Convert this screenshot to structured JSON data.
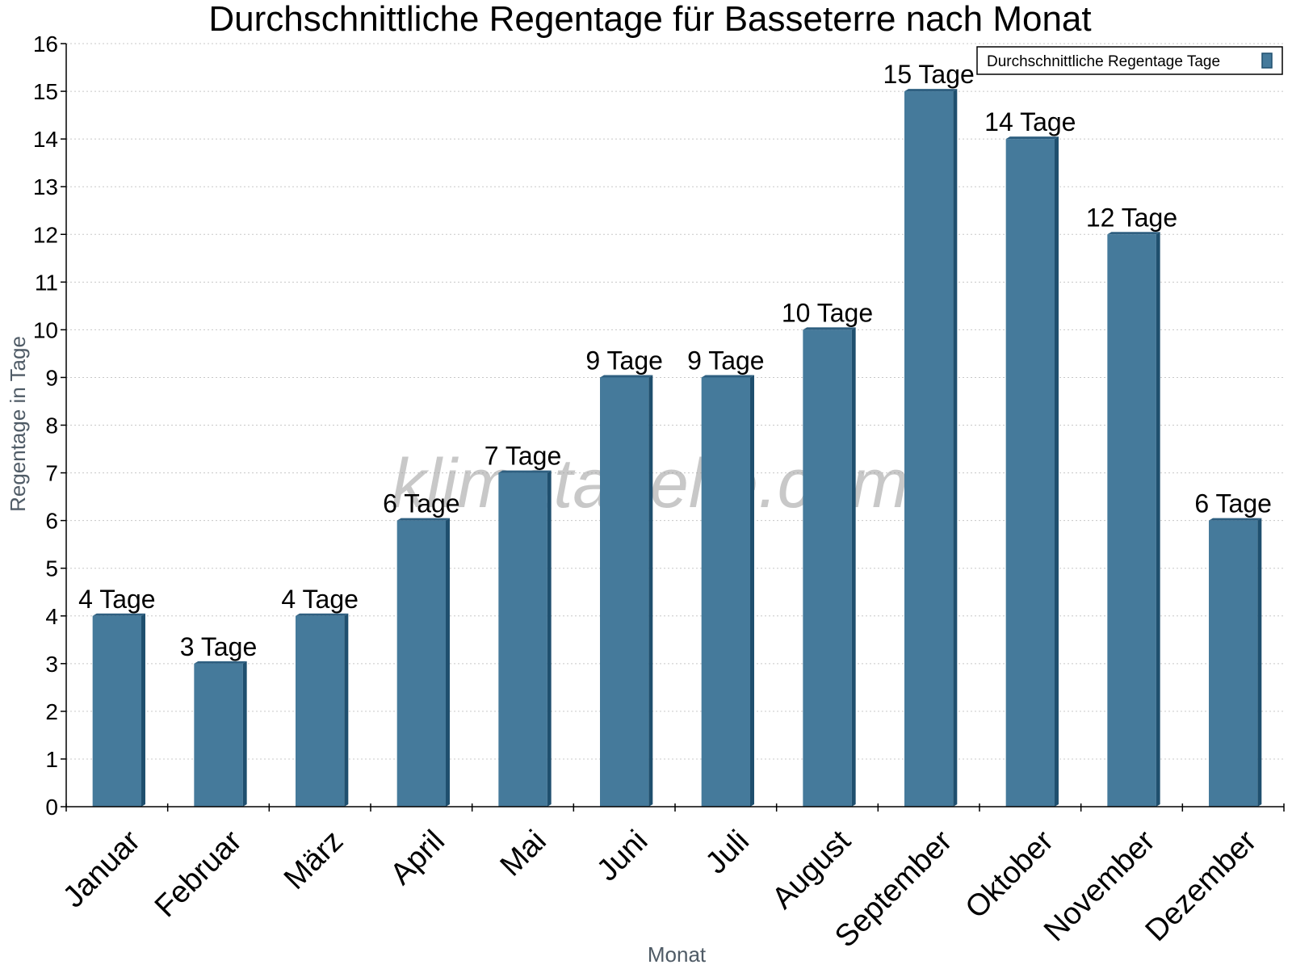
{
  "chart_data": {
    "type": "bar",
    "title": "Durchschnittliche Regentage für Basseterre nach Monat",
    "xlabel": "Monat",
    "ylabel": "Regentage in Tage",
    "categories": [
      "Januar",
      "Februar",
      "März",
      "April",
      "Mai",
      "Juni",
      "Juli",
      "August",
      "September",
      "Oktober",
      "November",
      "Dezember"
    ],
    "series": [
      {
        "name": "Durchschnittliche Regentage Tage",
        "values": [
          4,
          3,
          4,
          6,
          7,
          9,
          9,
          10,
          15,
          14,
          12,
          6
        ],
        "color": "#457a9b"
      }
    ],
    "data_labels": [
      "4 Tage",
      "3 Tage",
      "4 Tage",
      "6 Tage",
      "7 Tage",
      "9 Tage",
      "9 Tage",
      "10 Tage",
      "15 Tage",
      "14 Tage",
      "12 Tage",
      "6 Tage"
    ],
    "ylim": [
      0,
      16
    ],
    "yticks": [
      0,
      1,
      2,
      3,
      4,
      5,
      6,
      7,
      8,
      9,
      10,
      11,
      12,
      13,
      14,
      15,
      16
    ],
    "grid": "horizontal dotted",
    "legend_position": "top-right"
  },
  "watermark": "klimatabelle.com",
  "colors": {
    "bar_face": "#457a9b",
    "bar_side": "#1f4f6e",
    "bar_top": "#2e5f80",
    "grid": "#c8c8c8"
  }
}
